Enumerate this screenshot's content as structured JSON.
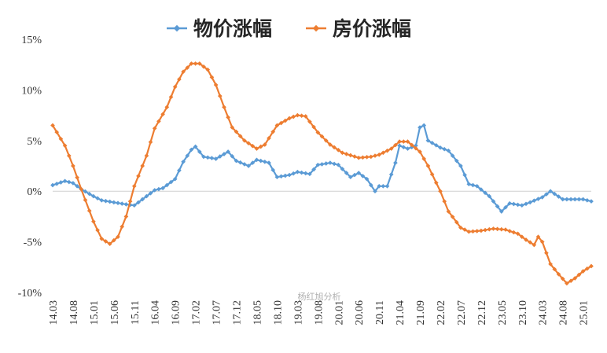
{
  "chart_data": {
    "type": "line",
    "title": "",
    "xlabel": "",
    "ylabel": "",
    "y_ticks": [
      "15%",
      "10%",
      "5%",
      "0%",
      "-5%",
      "-10%"
    ],
    "y_tick_values": [
      15,
      10,
      5,
      0,
      -5,
      -10
    ],
    "ylim": [
      -10,
      15
    ],
    "grid": false,
    "legend_position": "top-center",
    "x_tick_labels": [
      "14.03",
      "14.08",
      "15.01",
      "15.06",
      "15.11",
      "16.04",
      "16.09",
      "17.02",
      "17.07",
      "17.12",
      "18.05",
      "18.10",
      "19.03",
      "19.08",
      "20.01",
      "20.06",
      "20.11",
      "21.04",
      "21.09",
      "22.02",
      "22.07",
      "22.12",
      "23.05",
      "23.10",
      "24.03",
      "24.08",
      "25.01"
    ],
    "x_start": "2014.03",
    "x_end": "2025.03",
    "series": [
      {
        "name": "物价涨幅",
        "color": "#5B9BD5",
        "points": [
          [
            "2014.03",
            0.6
          ],
          [
            "2014.06",
            1.0
          ],
          [
            "2014.08",
            0.8
          ],
          [
            "2014.10",
            0.2
          ],
          [
            "2015.01",
            -0.5
          ],
          [
            "2015.03",
            -0.9
          ],
          [
            "2015.06",
            -1.1
          ],
          [
            "2015.09",
            -1.3
          ],
          [
            "2015.11",
            -1.4
          ],
          [
            "2016.01",
            -0.8
          ],
          [
            "2016.04",
            0.1
          ],
          [
            "2016.06",
            0.3
          ],
          [
            "2016.09",
            1.2
          ],
          [
            "2016.11",
            2.9
          ],
          [
            "2017.01",
            4.1
          ],
          [
            "2017.02",
            4.4
          ],
          [
            "2017.04",
            3.4
          ],
          [
            "2017.07",
            3.2
          ],
          [
            "2017.10",
            3.9
          ],
          [
            "2017.12",
            3.0
          ],
          [
            "2018.03",
            2.5
          ],
          [
            "2018.05",
            3.1
          ],
          [
            "2018.08",
            2.8
          ],
          [
            "2018.10",
            1.4
          ],
          [
            "2019.01",
            1.6
          ],
          [
            "2019.03",
            1.9
          ],
          [
            "2019.06",
            1.7
          ],
          [
            "2019.08",
            2.6
          ],
          [
            "2019.11",
            2.8
          ],
          [
            "2020.01",
            2.6
          ],
          [
            "2020.04",
            1.4
          ],
          [
            "2020.06",
            1.8
          ],
          [
            "2020.08",
            1.2
          ],
          [
            "2020.10",
            0.0
          ],
          [
            "2020.11",
            0.5
          ],
          [
            "2021.01",
            0.5
          ],
          [
            "2021.03",
            2.8
          ],
          [
            "2021.04",
            4.5
          ],
          [
            "2021.06",
            4.2
          ],
          [
            "2021.08",
            4.5
          ],
          [
            "2021.09",
            6.3
          ],
          [
            "2021.10",
            6.5
          ],
          [
            "2021.11",
            5.0
          ],
          [
            "2022.02",
            4.3
          ],
          [
            "2022.04",
            4.0
          ],
          [
            "2022.07",
            2.5
          ],
          [
            "2022.09",
            0.7
          ],
          [
            "2022.11",
            0.5
          ],
          [
            "2023.02",
            -0.5
          ],
          [
            "2023.05",
            -2.0
          ],
          [
            "2023.07",
            -1.2
          ],
          [
            "2023.10",
            -1.4
          ],
          [
            "2023.12",
            -1.1
          ],
          [
            "2024.03",
            -0.6
          ],
          [
            "2024.05",
            0.0
          ],
          [
            "2024.08",
            -0.8
          ],
          [
            "2024.11",
            -0.8
          ],
          [
            "2025.01",
            -0.8
          ],
          [
            "2025.03",
            -1.0
          ]
        ]
      },
      {
        "name": "房价涨幅",
        "color": "#ED7D31",
        "points": [
          [
            "2014.03",
            6.5
          ],
          [
            "2014.06",
            4.5
          ],
          [
            "2014.08",
            2.5
          ],
          [
            "2014.10",
            0.2
          ],
          [
            "2015.01",
            -3.0
          ],
          [
            "2015.03",
            -4.7
          ],
          [
            "2015.05",
            -5.2
          ],
          [
            "2015.07",
            -4.5
          ],
          [
            "2015.09",
            -2.5
          ],
          [
            "2015.11",
            0.5
          ],
          [
            "2016.02",
            3.5
          ],
          [
            "2016.04",
            6.2
          ],
          [
            "2016.07",
            8.3
          ],
          [
            "2016.09",
            10.3
          ],
          [
            "2016.11",
            11.8
          ],
          [
            "2017.01",
            12.6
          ],
          [
            "2017.03",
            12.6
          ],
          [
            "2017.05",
            12.0
          ],
          [
            "2017.07",
            10.5
          ],
          [
            "2017.09",
            8.3
          ],
          [
            "2017.11",
            6.3
          ],
          [
            "2018.02",
            5.0
          ],
          [
            "2018.05",
            4.2
          ],
          [
            "2018.07",
            4.6
          ],
          [
            "2018.10",
            6.5
          ],
          [
            "2019.01",
            7.2
          ],
          [
            "2019.03",
            7.5
          ],
          [
            "2019.05",
            7.4
          ],
          [
            "2019.08",
            5.8
          ],
          [
            "2019.11",
            4.6
          ],
          [
            "2020.02",
            3.8
          ],
          [
            "2020.06",
            3.3
          ],
          [
            "2020.09",
            3.4
          ],
          [
            "2020.11",
            3.6
          ],
          [
            "2021.02",
            4.2
          ],
          [
            "2021.04",
            4.9
          ],
          [
            "2021.06",
            4.9
          ],
          [
            "2021.09",
            3.9
          ],
          [
            "2021.11",
            2.5
          ],
          [
            "2022.02",
            0.0
          ],
          [
            "2022.04",
            -2.0
          ],
          [
            "2022.07",
            -3.6
          ],
          [
            "2022.09",
            -4.0
          ],
          [
            "2022.12",
            -3.9
          ],
          [
            "2023.03",
            -3.7
          ],
          [
            "2023.06",
            -3.8
          ],
          [
            "2023.09",
            -4.2
          ],
          [
            "2023.11",
            -4.8
          ],
          [
            "2024.01",
            -5.3
          ],
          [
            "2024.02",
            -4.5
          ],
          [
            "2024.03",
            -5.0
          ],
          [
            "2024.05",
            -7.2
          ],
          [
            "2024.07",
            -8.2
          ],
          [
            "2024.09",
            -9.1
          ],
          [
            "2024.11",
            -8.6
          ],
          [
            "2025.01",
            -7.9
          ],
          [
            "2025.03",
            -7.4
          ]
        ]
      }
    ]
  },
  "watermark": "杨红旭分析"
}
